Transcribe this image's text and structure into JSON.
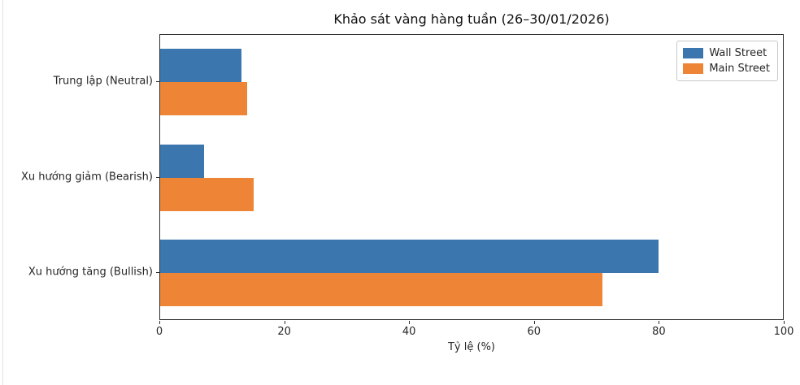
{
  "chart_data": {
    "type": "bar",
    "orientation": "horizontal",
    "title": "Khảo sát vàng hàng tuần (26–30/01/2026)",
    "xlabel": "Tỷ lệ (%)",
    "ylabel": "",
    "categories_top_to_bottom": [
      "Trung lập (Neutral)",
      "Xu hướng giảm (Bearish)",
      "Xu hướng tăng (Bullish)"
    ],
    "series": [
      {
        "name": "Wall Street",
        "color": "#3b76af",
        "values": [
          13,
          7,
          80
        ]
      },
      {
        "name": "Main Street",
        "color": "#ee8435",
        "values": [
          14,
          15,
          71
        ]
      }
    ],
    "xlim": [
      0,
      100
    ],
    "xticks": [
      0,
      20,
      40,
      60,
      80,
      100
    ],
    "grid": false,
    "legend_position": "upper right",
    "spine_color": "#2f2f2f",
    "background_color": "#ffffff"
  }
}
